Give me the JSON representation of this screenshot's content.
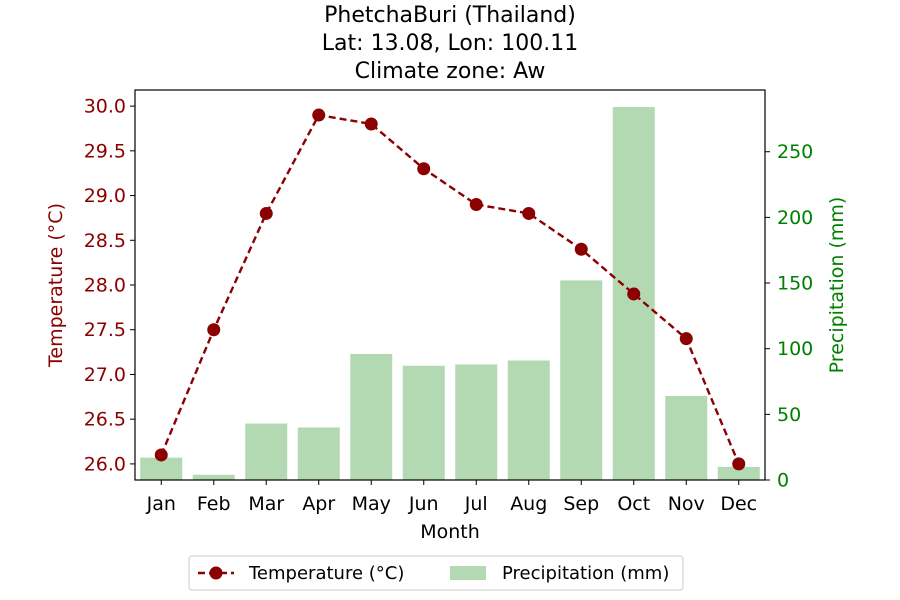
{
  "chart_data": {
    "type": "bar+line",
    "title": [
      "PhetchaBuri (Thailand)",
      "Lat: 13.08, Lon: 100.11",
      "Climate zone: Aw"
    ],
    "xlabel": "Month",
    "ylabel_left": "Temperature (°C)",
    "ylabel_right": "Precipitation (mm)",
    "categories": [
      "Jan",
      "Feb",
      "Mar",
      "Apr",
      "May",
      "Jun",
      "Jul",
      "Aug",
      "Sep",
      "Oct",
      "Nov",
      "Dec"
    ],
    "series": [
      {
        "name": "Temperature (°C)",
        "type": "line",
        "axis": "left",
        "values": [
          26.1,
          27.5,
          28.8,
          29.9,
          29.8,
          29.3,
          28.9,
          28.8,
          28.4,
          27.9,
          27.4,
          26.0
        ],
        "color": "#8b0000"
      },
      {
        "name": "Precipitation (mm)",
        "type": "bar",
        "axis": "right",
        "values": [
          17,
          4,
          43,
          40,
          96,
          87,
          88,
          91,
          152,
          284,
          64,
          10
        ],
        "color": "#b2d9b2"
      }
    ],
    "ylim_left": [
      25.82,
      30.18
    ],
    "yticks_left": [
      "26.0",
      "26.5",
      "27.0",
      "27.5",
      "28.0",
      "28.5",
      "29.0",
      "29.5",
      "30.0"
    ],
    "ylim_right": [
      0,
      297
    ],
    "yticks_right": [
      "0",
      "50",
      "100",
      "150",
      "200",
      "250"
    ],
    "left_axis_color": "#8b0000",
    "right_axis_color": "#008000",
    "legend": {
      "placement": "bottom-center",
      "entries": [
        "Temperature (°C)",
        "Precipitation (mm)"
      ]
    },
    "grid": false
  }
}
